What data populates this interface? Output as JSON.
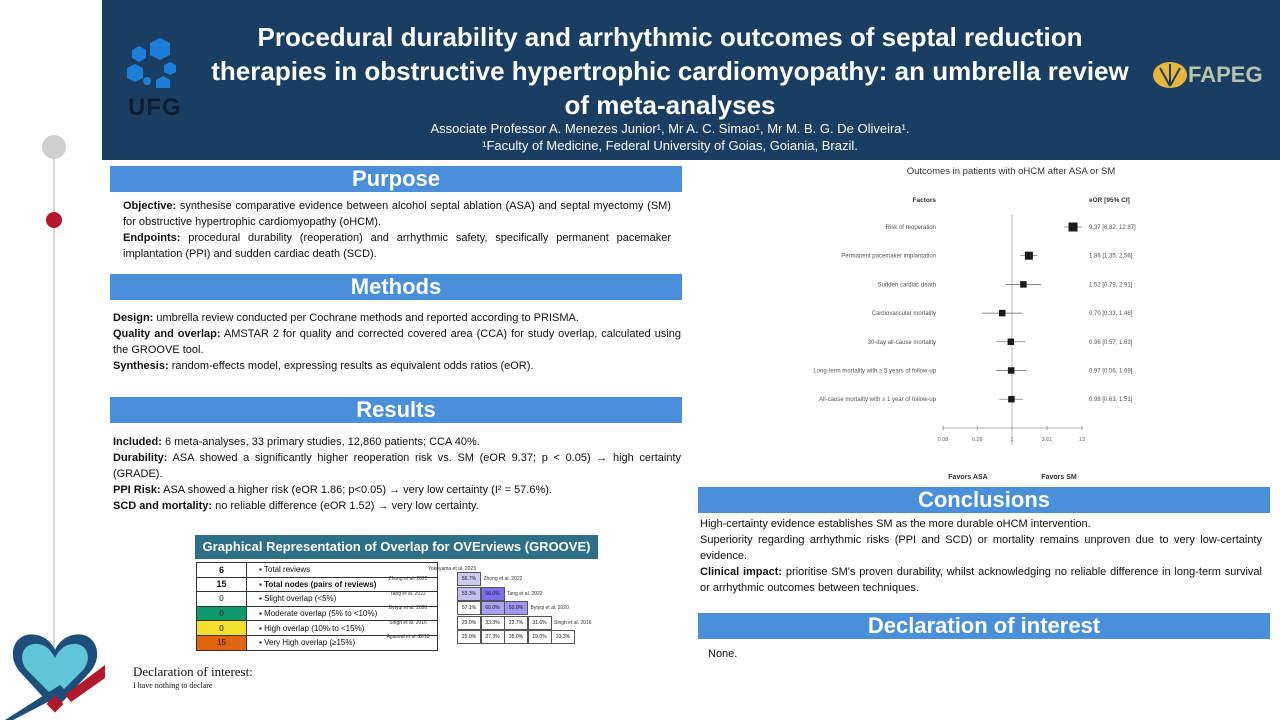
{
  "header": {
    "title": "Procedural durability and arrhythmic outcomes of septal reduction therapies in obstructive hypertrophic cardiomyopathy: an umbrella review of meta-analyses",
    "authors": "Associate Professor A. Menezes Junior¹, Mr A. C. Simao¹, Mr M. B. G. De Oliveira¹.",
    "affiliation": "¹Faculty of Medicine, Federal University of Goias, Goiania, Brazil.",
    "logo_left": "UFG",
    "logo_right": "FAPEG"
  },
  "purpose": {
    "heading": "Purpose",
    "objective_label": "Objective:",
    "objective": " synthesise comparative evidence between alcohol septal ablation (ASA) and septal myectomy (SM) for obstructive hypertrophic cardiomyopathy (oHCM).",
    "endpoints_label": "Endpoints:",
    "endpoints": " procedural durability (reoperation) and arrhythmic safety, specifically permanent pacemaker implantation (PPI) and sudden cardiac death (SCD)."
  },
  "methods": {
    "heading": "Methods",
    "design_label": "Design:",
    "design": " umbrella review conducted per Cochrane methods and reported according to PRISMA.",
    "quality_label": "Quality and overlap:",
    "quality": " AMSTAR 2 for quality and corrected covered area (CCA) for study overlap, calculated using the GROOVE tool.",
    "synthesis_label": "Synthesis:",
    "synthesis": " random-effects model, expressing results as equivalent odds ratios (eOR)."
  },
  "results": {
    "heading": "Results",
    "included_label": "Included:",
    "included": " 6 meta-analyses, 33 primary studies, 12,860 patients; CCA 40%.",
    "durability_label": "Durability:",
    "durability": " ASA showed a significantly higher reoperation risk vs. SM (eOR 9.37; p < 0.05) → high certainty (GRADE).",
    "ppi_label": "PPI Risk:",
    "ppi": " ASA showed a higher risk (eOR 1.86; p<0.05) → very low certainty (I² = 57.6%).",
    "scd_label": "SCD and mortality:",
    "scd": " no reliable difference (eOR 1.52) → very low certainty."
  },
  "groove": {
    "title": "Graphical Representation of Overlap for OVErviews (GROOVE)",
    "legend": [
      {
        "count": "6",
        "label": "Total reviews",
        "color": "#ffffff"
      },
      {
        "count": "15",
        "label": "Total nodes (pairs of reviews)",
        "color": "#ffffff"
      },
      {
        "count": "0",
        "label": "Slight overlap (<5%)",
        "color": "#ffffff"
      },
      {
        "count": "0",
        "label": "Moderate overlap (5% to <10%)",
        "color": "#0f9a6e"
      },
      {
        "count": "0",
        "label": "High overlap (10% to <15%)",
        "color": "#f2e02c"
      },
      {
        "count": "15",
        "label": "Very High overlap (≥15%)",
        "color": "#e0650f"
      }
    ],
    "top_label": "Yokoyama et al. 2023",
    "rows": [
      {
        "label": "Zhong et al. 2022",
        "cells": [
          "56.7%"
        ],
        "diag": "Zhong et al. 2022"
      },
      {
        "label": "Tang et al. 2022",
        "cells": [
          "53.3%",
          "56.0%"
        ],
        "diag": "Tang et al. 2022"
      },
      {
        "label": "Bytyqi et al. 2020",
        "cells": [
          "57.1%",
          "60.0%",
          "50.0%"
        ],
        "diag": "Bytyqi et al. 2020"
      },
      {
        "label": "Singh et al. 2016",
        "cells": [
          "29.0%",
          "33.3%",
          "22.7%",
          "31.6%"
        ],
        "diag": "Singh et al. 2016"
      },
      {
        "label": "Agarwal et al. 2010",
        "cells": [
          "25.0%",
          "27.3%",
          "35.0%",
          "19.0%",
          "33.3%"
        ],
        "diag": ""
      }
    ],
    "cell_colors": [
      [
        "#cdc9f3"
      ],
      [
        "#c4c0f2",
        "#7d70ee"
      ],
      [
        "#ffffff",
        "#aaa3f5",
        "#9f96f2"
      ],
      [
        "#ffffff",
        "#ffffff",
        "#ffffff",
        "#ffffff"
      ],
      [
        "#ffffff",
        "#ffffff",
        "#ffffff",
        "#ffffff",
        "#ffffff"
      ]
    ]
  },
  "declaration_left": {
    "heading": "Declaration of interest:",
    "text": "I have nothing to declare"
  },
  "chart_data": {
    "type": "forest",
    "title": "Outcomes in patients with oHCM after ASA or SM",
    "factor_header": "Factors",
    "value_header": "eOR [95% CI]",
    "scale": "log",
    "xticks": [
      "0.08",
      "0.28",
      "1",
      "3.61",
      "13"
    ],
    "xlim": [
      0.08,
      13
    ],
    "left_label": "Favors ASA",
    "right_label": "Favors SM",
    "rows": [
      {
        "factor": "Risk of reoperation",
        "eor": 9.37,
        "lo": 6.82,
        "hi": 12.87,
        "text": "9.37 [6.82, 12.87]"
      },
      {
        "factor": "Permanent pacemaker implantation",
        "eor": 1.86,
        "lo": 1.35,
        "hi": 2.56,
        "text": "1.86 [1.35, 2.56]"
      },
      {
        "factor": "Sudden cardiac death",
        "eor": 1.52,
        "lo": 0.79,
        "hi": 2.91,
        "text": "1.52 [0.79, 2.91]"
      },
      {
        "factor": "Cardiovascular mortality",
        "eor": 0.7,
        "lo": 0.33,
        "hi": 1.46,
        "text": "0.70 [0.33, 1.46]"
      },
      {
        "factor": "30-day all-cause mortality",
        "eor": 0.96,
        "lo": 0.57,
        "hi": 1.63,
        "text": "0.96 [0.57, 1.63]"
      },
      {
        "factor": "Long-term mortality with ≥ 5 years of follow-up",
        "eor": 0.97,
        "lo": 0.56,
        "hi": 1.69,
        "text": "0.97 [0.56, 1.69]"
      },
      {
        "factor": "All-cause mortality with ≥ 1 year of follow-up",
        "eor": 0.98,
        "lo": 0.63,
        "hi": 1.51,
        "text": "0.98 [0.63, 1.51]"
      }
    ]
  },
  "conclusions": {
    "heading": "Conclusions",
    "p1": "High-certainty evidence establishes SM as the more durable oHCM intervention.",
    "p2": "Superiority regarding arrhythmic risks (PPI and SCD) or mortality remains unproven due to very low-certainty evidence.",
    "p3_label": "Clinical impact:",
    "p3": " prioritise SM's proven durability, whilst acknowledging no reliable difference in long-term survival or arrhythmic outcomes between techniques."
  },
  "declaration": {
    "heading": "Declaration of interest",
    "text": "None."
  }
}
